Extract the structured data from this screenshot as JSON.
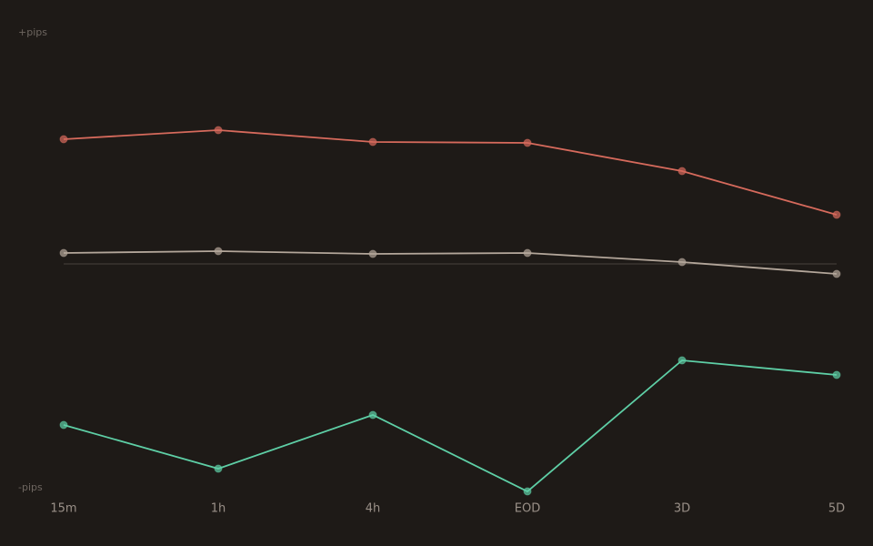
{
  "chart_data": {
    "type": "line",
    "y_labels": {
      "top": "+pips",
      "bottom": "-pips"
    },
    "categories": [
      "15m",
      "1h",
      "4h",
      "EOD",
      "3D",
      "5D"
    ],
    "series": [
      {
        "color": "#d66a5c",
        "values": [
          137,
          147,
          134,
          133,
          102,
          54
        ]
      },
      {
        "color": "#b3a69a",
        "values": [
          12,
          14,
          11,
          12,
          2,
          -11
        ]
      },
      {
        "color": "#5ecfa6",
        "values": [
          -177,
          -225,
          -166,
          -250,
          -106,
          -122
        ]
      }
    ],
    "ylim": [
      -250,
      250
    ],
    "zero_line": true
  }
}
